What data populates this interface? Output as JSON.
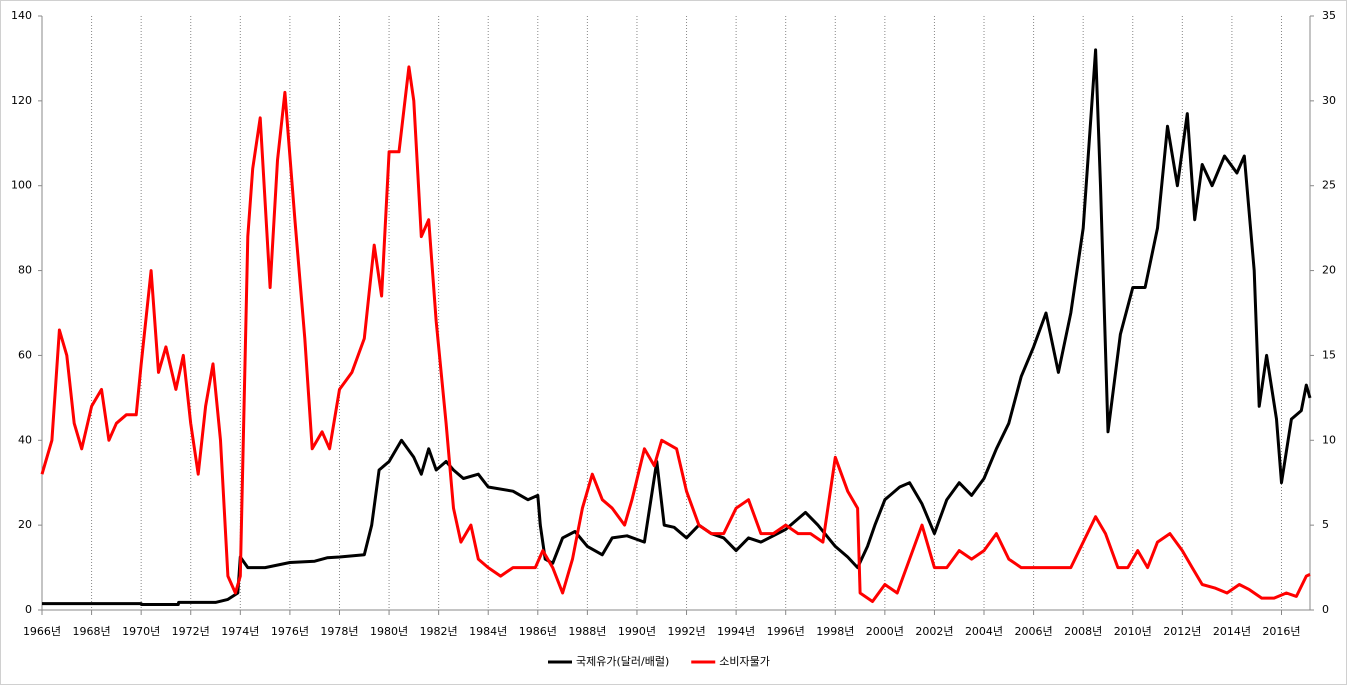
{
  "chart_data": {
    "type": "line",
    "xlim": [
      1966,
      2017.15
    ],
    "xticks": [
      {
        "value": 1966,
        "label": "1966년"
      },
      {
        "value": 1968,
        "label": "1968년"
      },
      {
        "value": 1970,
        "label": "1970년"
      },
      {
        "value": 1972,
        "label": "1972년"
      },
      {
        "value": 1974,
        "label": "1974년"
      },
      {
        "value": 1976,
        "label": "1976년"
      },
      {
        "value": 1978,
        "label": "1978년"
      },
      {
        "value": 1980,
        "label": "1980년"
      },
      {
        "value": 1982,
        "label": "1982년"
      },
      {
        "value": 1984,
        "label": "1984년"
      },
      {
        "value": 1986,
        "label": "1986년"
      },
      {
        "value": 1988,
        "label": "1988년"
      },
      {
        "value": 1990,
        "label": "1990년"
      },
      {
        "value": 1992,
        "label": "1992년"
      },
      {
        "value": 1994,
        "label": "1994년"
      },
      {
        "value": 1996,
        "label": "1996년"
      },
      {
        "value": 1998,
        "label": "1998년"
      },
      {
        "value": 2000,
        "label": "2000년"
      },
      {
        "value": 2002,
        "label": "2002년"
      },
      {
        "value": 2004,
        "label": "2004년"
      },
      {
        "value": 2006,
        "label": "2006년"
      },
      {
        "value": 2008,
        "label": "2008년"
      },
      {
        "value": 2010,
        "label": "2010년"
      },
      {
        "value": 2012,
        "label": "2012년"
      },
      {
        "value": 2014,
        "label": "2014년"
      },
      {
        "value": 2016,
        "label": "2016년"
      }
    ],
    "ylim": [
      0,
      140
    ],
    "yticks": [
      0,
      20,
      40,
      60,
      80,
      100,
      120,
      140
    ],
    "y2lim": [
      0,
      35
    ],
    "y2ticks": [
      0,
      5,
      10,
      15,
      20,
      25,
      30,
      35
    ],
    "grid": true,
    "legend": "bottom",
    "series": [
      {
        "name": "국제유가(달러/배럴)",
        "color": "#000000",
        "axis": "y",
        "x": [
          1966,
          1970,
          1970.01,
          1971.5,
          1971.51,
          1973,
          1973.5,
          1973.9,
          1974,
          1974.3,
          1975,
          1976,
          1977,
          1977.5,
          1978,
          1979,
          1979.3,
          1979.6,
          1980,
          1980.5,
          1981,
          1981.3,
          1981.6,
          1981.9,
          1982.3,
          1982.6,
          1983,
          1983.6,
          1984,
          1985,
          1985.6,
          1986,
          1986.1,
          1986.3,
          1986.6,
          1987,
          1987.5,
          1988,
          1988.6,
          1989,
          1989.6,
          1990.3,
          1990.8,
          1991.1,
          1991.5,
          1992,
          1992.5,
          1993,
          1993.5,
          1994,
          1994.5,
          1995,
          1996,
          1996.8,
          1997.3,
          1998,
          1998.5,
          1998.9,
          1999.3,
          1999.6,
          2000,
          2000.6,
          2001,
          2001.5,
          2002,
          2002.5,
          2003,
          2003.5,
          2004,
          2004.5,
          2005,
          2005.5,
          2006,
          2006.5,
          2007,
          2007.5,
          2008,
          2008.5,
          2008.7,
          2009,
          2009.5,
          2010,
          2010.5,
          2011,
          2011.4,
          2011.8,
          2012.2,
          2012.5,
          2012.8,
          2013.2,
          2013.7,
          2014.2,
          2014.5,
          2014.9,
          2015.1,
          2015.4,
          2015.8,
          2016,
          2016.4,
          2016.8,
          2017,
          2017.15
        ],
        "values": [
          1.5,
          1.5,
          1.3,
          1.3,
          1.8,
          1.8,
          2.5,
          4,
          12.5,
          10,
          10,
          11.2,
          11.5,
          12.3,
          12.5,
          13,
          20,
          33,
          35,
          40,
          36,
          32,
          38,
          33,
          35,
          33,
          31,
          32,
          29,
          28,
          26,
          27,
          20,
          12,
          11,
          17,
          18.5,
          15,
          13,
          17,
          17.5,
          16,
          35,
          20,
          19.5,
          17,
          20,
          18,
          17,
          14,
          17,
          16,
          19,
          23,
          20,
          15,
          12.5,
          10,
          15,
          20,
          26,
          29,
          30,
          25,
          18,
          26,
          30,
          27,
          31,
          38,
          44,
          55,
          62,
          70,
          56,
          70,
          90,
          132,
          100,
          42,
          65,
          76,
          76,
          90,
          114,
          100,
          117,
          92,
          105,
          100,
          107,
          103,
          107,
          80,
          48,
          60,
          45,
          30,
          45,
          47,
          53,
          50
        ]
      },
      {
        "name": "소비자물가",
        "color": "#ff0000",
        "axis": "y2",
        "x": [
          1966,
          1966.4,
          1966.7,
          1967,
          1967.3,
          1967.6,
          1968,
          1968.4,
          1968.7,
          1969,
          1969.4,
          1969.8,
          1970,
          1970.4,
          1970.7,
          1971,
          1971.4,
          1971.7,
          1972,
          1972.3,
          1972.6,
          1972.9,
          1973.2,
          1973.5,
          1973.8,
          1974,
          1974.3,
          1974.5,
          1974.8,
          1975.2,
          1975.5,
          1975.8,
          1976.2,
          1976.6,
          1976.9,
          1977.3,
          1977.6,
          1978,
          1978.5,
          1979,
          1979.4,
          1979.7,
          1980,
          1980.4,
          1980.8,
          1981,
          1981.3,
          1981.6,
          1981.9,
          1982.3,
          1982.6,
          1982.9,
          1983.3,
          1983.6,
          1984,
          1984.5,
          1985,
          1985.5,
          1985.9,
          1986.2,
          1986.6,
          1987,
          1987.4,
          1987.8,
          1988.2,
          1988.6,
          1989,
          1989.5,
          1989.8,
          1990.3,
          1990.7,
          1991,
          1991.6,
          1992,
          1992.5,
          1993,
          1993.5,
          1994,
          1994.5,
          1995,
          1995.5,
          1996,
          1996.5,
          1997,
          1997.5,
          1998,
          1998.5,
          1998.9,
          1999,
          1999.5,
          2000,
          2000.5,
          2001,
          2001.5,
          2002,
          2002.5,
          2003,
          2003.5,
          2004,
          2004.5,
          2005,
          2005.5,
          2006,
          2006.5,
          2007,
          2007.5,
          2008,
          2008.5,
          2008.9,
          2009.4,
          2009.8,
          2010.2,
          2010.6,
          2011,
          2011.5,
          2012,
          2012.4,
          2012.8,
          2013.3,
          2013.8,
          2014.3,
          2014.7,
          2015.2,
          2015.7,
          2016.2,
          2016.6,
          2017,
          2017.15
        ],
        "values": [
          8,
          10,
          16.5,
          15,
          11,
          9.5,
          12,
          13,
          10,
          11,
          11.5,
          11.5,
          14.5,
          20,
          14,
          15.5,
          13,
          15,
          11,
          8,
          12,
          14.5,
          10,
          2,
          1,
          2,
          22,
          26,
          29,
          19,
          26.5,
          30.5,
          23,
          16,
          9.5,
          10.5,
          9.5,
          13,
          14,
          16,
          21.5,
          18.5,
          27,
          27,
          32,
          30,
          22,
          23,
          17,
          11,
          6,
          4,
          5,
          3,
          2.5,
          2,
          2.5,
          2.5,
          2.5,
          3.5,
          2.5,
          1,
          3,
          6,
          8,
          6.5,
          6,
          5,
          6.5,
          9.5,
          8.5,
          10,
          9.5,
          7,
          5,
          4.5,
          4.5,
          6,
          6.5,
          4.5,
          4.5,
          5,
          4.5,
          4.5,
          4,
          9,
          7,
          6,
          1,
          0.5,
          1.5,
          1,
          3,
          5,
          2.5,
          2.5,
          3.5,
          3,
          3.5,
          4.5,
          3,
          2.5,
          2.5,
          2.5,
          2.5,
          2.5,
          4,
          5.5,
          4.5,
          2.5,
          2.5,
          3.5,
          2.5,
          4,
          4.5,
          3.5,
          2.5,
          1.5,
          1.3,
          1,
          1.5,
          1.2,
          0.7,
          0.7,
          1,
          0.8,
          2,
          2.1
        ]
      }
    ]
  }
}
